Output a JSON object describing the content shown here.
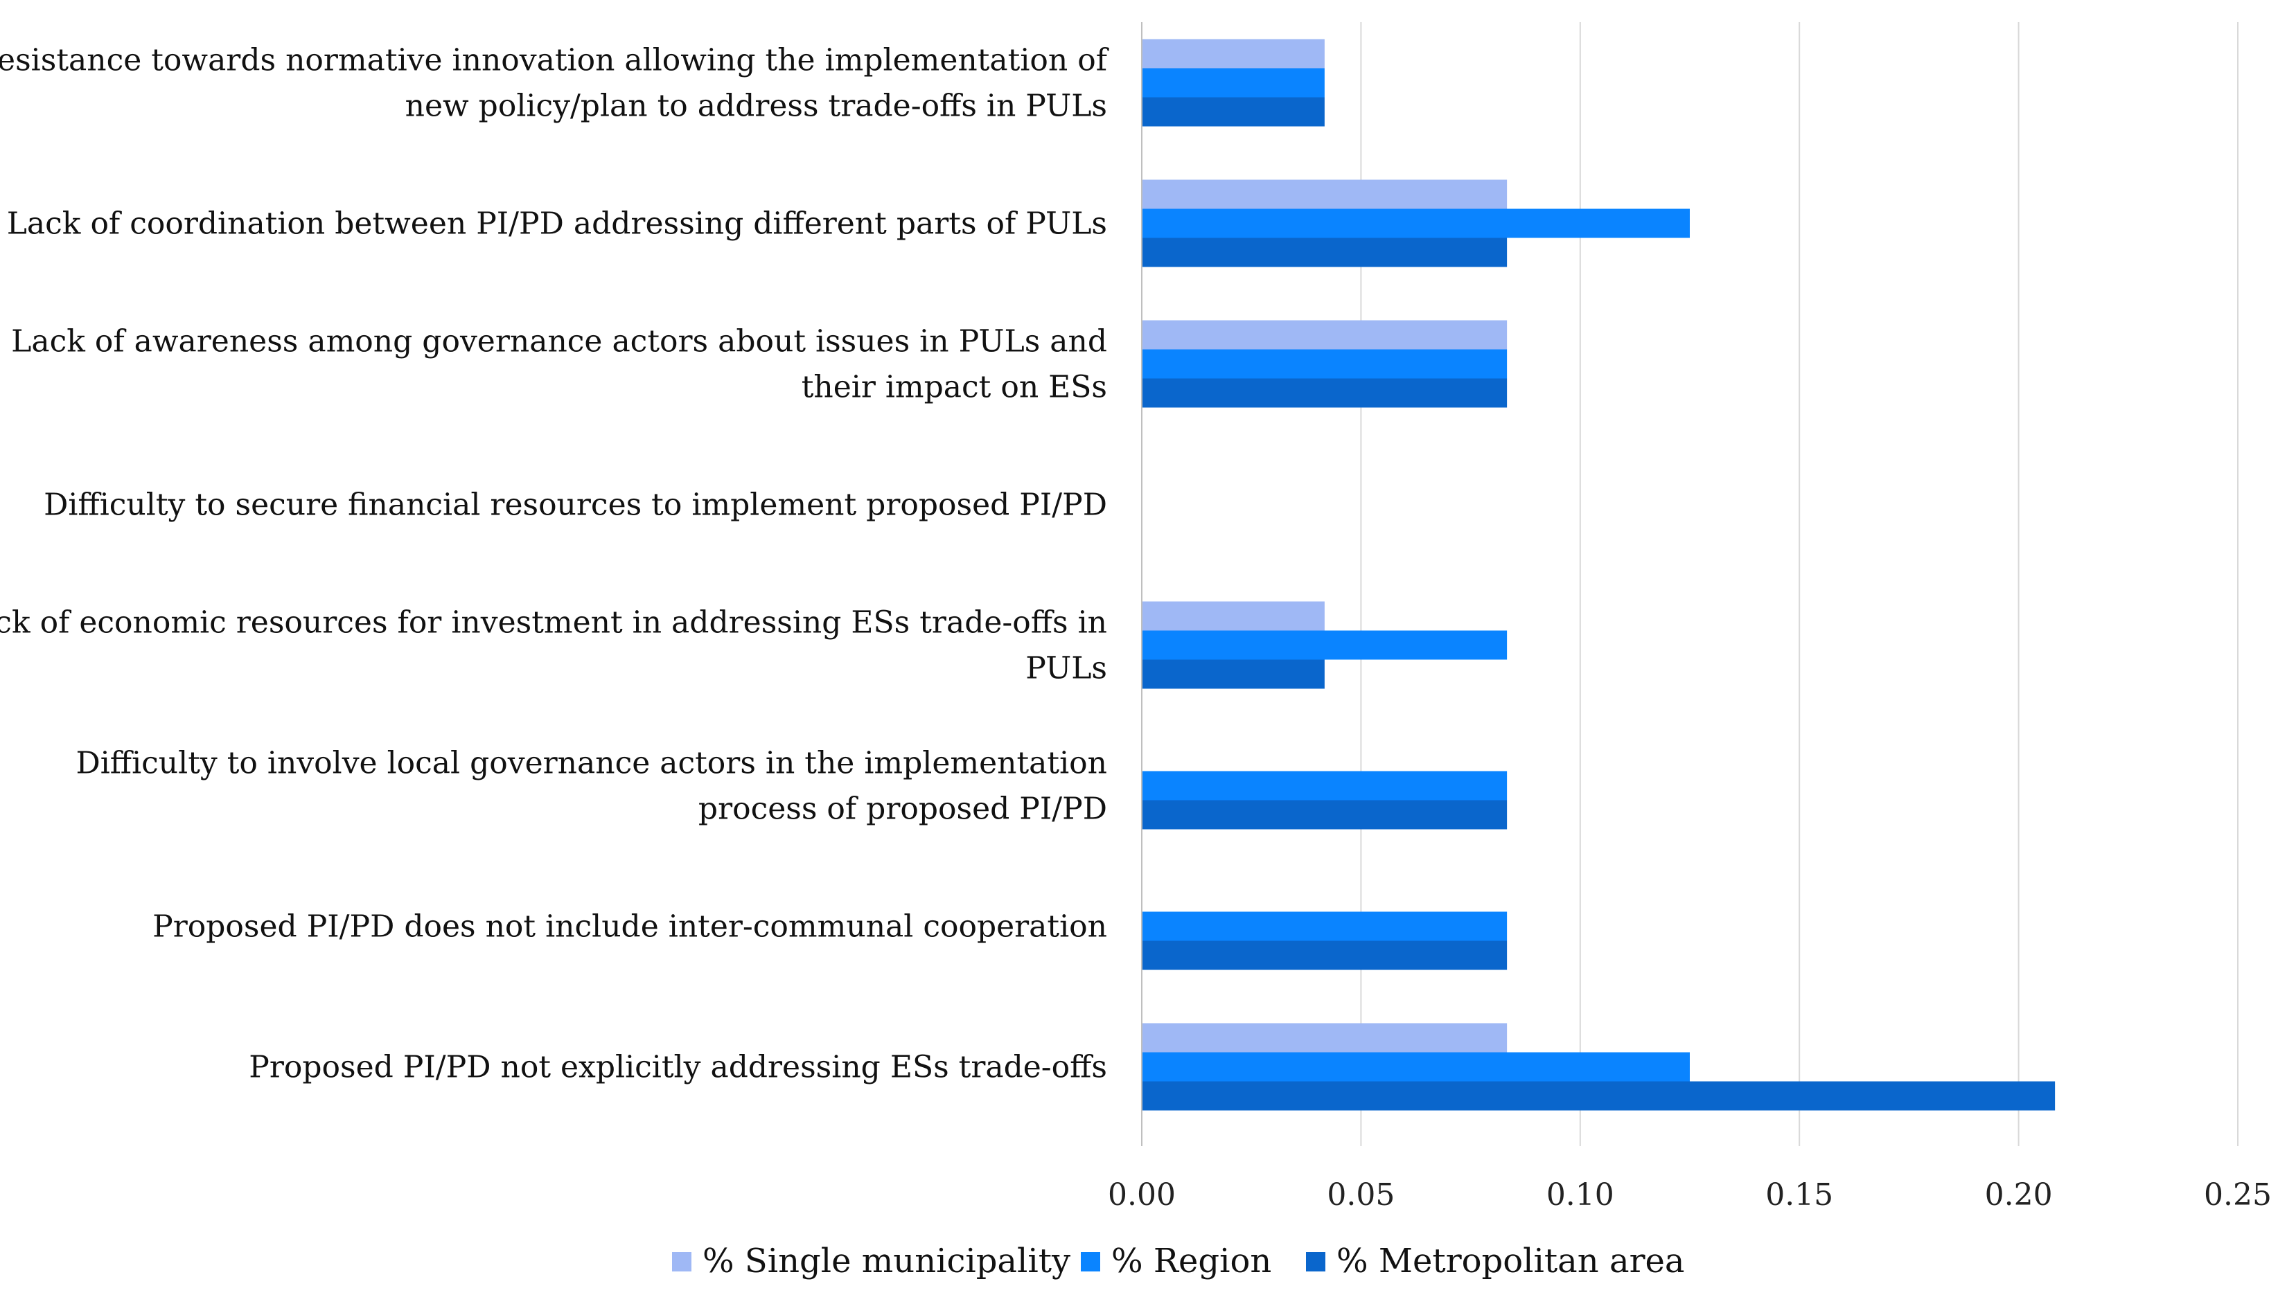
{
  "chart_data": {
    "type": "bar",
    "orientation": "horizontal",
    "title": "",
    "xlabel": "",
    "ylabel": "",
    "xlim": [
      0,
      0.25
    ],
    "x_ticks": [
      0.0,
      0.05,
      0.1,
      0.15,
      0.2,
      0.25
    ],
    "x_tick_labels": [
      "0.00",
      "0.05",
      "0.10",
      "0.15",
      "0.20",
      "0.25"
    ],
    "grid": "vertical",
    "legend_position": "bottom",
    "categories": [
      [
        "Resistance towards normative innovation allowing the implementation of",
        "new policy/plan to address trade-offs in PULs"
      ],
      [
        "Lack of coordination between PI/PD addressing different parts of PULs"
      ],
      [
        "Lack of awareness among governance actors about issues in PULs and",
        "their impact on ESs"
      ],
      [
        "Difficulty to secure financial resources to implement proposed PI/PD"
      ],
      [
        "Lack of economic resources for investment in addressing ESs trade-offs in",
        "PULs"
      ],
      [
        "Difficulty to involve local governance actors in the implementation",
        "process of proposed PI/PD"
      ],
      [
        "Proposed PI/PD does not include inter-communal cooperation"
      ],
      [
        "Proposed PI/PD not explicitly addressing ESs trade-offs"
      ]
    ],
    "series": [
      {
        "name": "% Single municipality",
        "color": "#9fb8f5",
        "values": [
          0.0417,
          0.0833,
          0.0833,
          0,
          0.0417,
          0,
          0,
          0.0833
        ]
      },
      {
        "name": "% Region",
        "color": "#0a84ff",
        "values": [
          0.0417,
          0.125,
          0.0833,
          0,
          0.0833,
          0.0833,
          0.0833,
          0.125
        ]
      },
      {
        "name": "% Metropolitan area",
        "color": "#0a66cc",
        "values": [
          0.0417,
          0.0833,
          0.0833,
          0,
          0.0417,
          0.0833,
          0.0833,
          0.2083
        ]
      }
    ],
    "colors": {
      "gridline": "#d9d9d9",
      "axis": "#bfbfbf"
    }
  }
}
